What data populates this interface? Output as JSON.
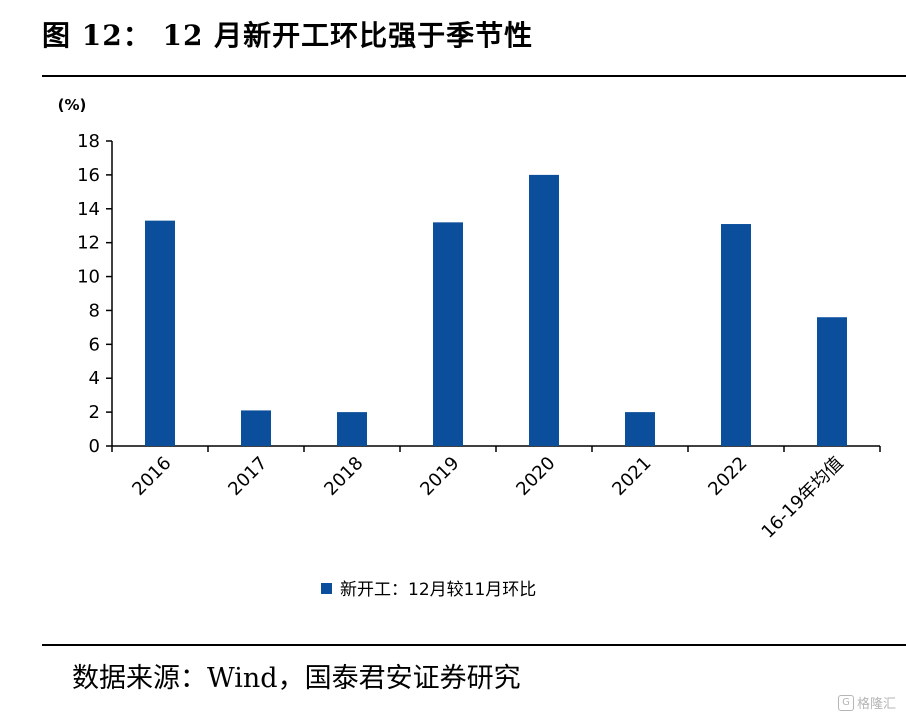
{
  "title": "图 12：  12 月新开工环比强于季节性",
  "source": "数据来源：Wind，国泰君安证券研究",
  "watermark": "格隆汇",
  "colors": {
    "bar": "#0B4F9C",
    "axis": "#000000"
  },
  "chart_data": {
    "type": "bar",
    "title": "",
    "xlabel": "",
    "ylabel": "(%)",
    "ylim": [
      0,
      18
    ],
    "yticks": [
      0,
      2,
      4,
      6,
      8,
      10,
      12,
      14,
      16,
      18
    ],
    "categories": [
      "2016",
      "2017",
      "2018",
      "2019",
      "2020",
      "2021",
      "2022",
      "16-19年均值"
    ],
    "series": [
      {
        "name": "新开工：12月较11月环比",
        "values": [
          13.3,
          2.1,
          2.0,
          13.2,
          16.0,
          2.0,
          13.1,
          7.6
        ]
      }
    ],
    "legend": "bottom",
    "grid": false
  }
}
